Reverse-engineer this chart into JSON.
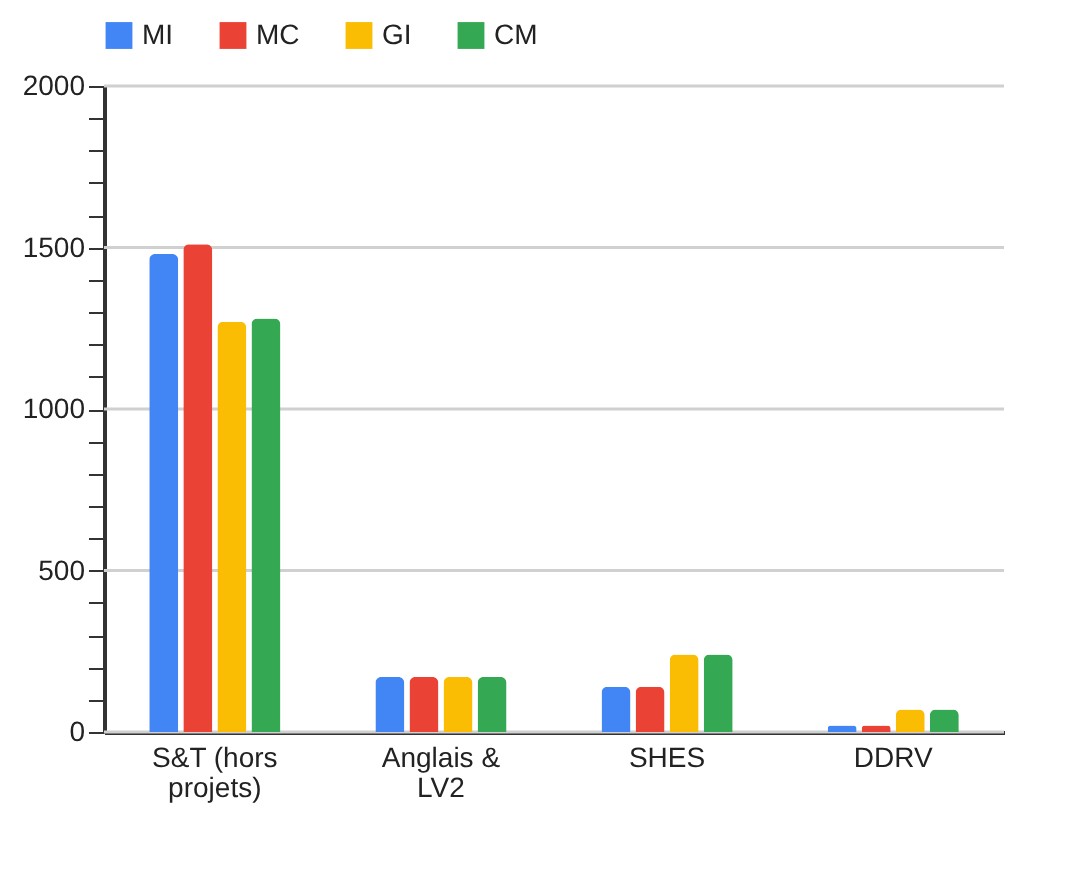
{
  "chart_data": {
    "type": "bar",
    "categories": [
      "S&T (hors projets)",
      "Anglais & LV2",
      "SHES",
      "DDRV"
    ],
    "series": [
      {
        "name": "MI",
        "color": "#4285f4",
        "values": [
          1480,
          170,
          140,
          20
        ]
      },
      {
        "name": "MC",
        "color": "#ea4335",
        "values": [
          1510,
          170,
          140,
          20
        ]
      },
      {
        "name": "GI",
        "color": "#fbbc04",
        "values": [
          1270,
          170,
          240,
          70
        ]
      },
      {
        "name": "CM",
        "color": "#34a853",
        "values": [
          1280,
          170,
          240,
          70
        ]
      }
    ],
    "ylim": [
      0,
      2000
    ],
    "yticks": [
      0,
      {
        "value": 100,
        "label": null
      },
      {
        "value": 200,
        "label": null
      },
      {
        "value": 300,
        "label": null
      },
      {
        "value": 400,
        "label": null
      },
      500,
      {
        "value": 600,
        "label": null
      },
      {
        "value": 700,
        "label": null
      },
      {
        "value": 800,
        "label": null
      },
      {
        "value": 900,
        "label": null
      },
      1000,
      {
        "value": 1100,
        "label": null
      },
      {
        "value": 1200,
        "label": null
      },
      {
        "value": 1300,
        "label": null
      },
      {
        "value": 1400,
        "label": null
      },
      1500,
      {
        "value": 1600,
        "label": null
      },
      {
        "value": 1700,
        "label": null
      },
      {
        "value": 1800,
        "label": null
      },
      {
        "value": 1900,
        "label": null
      },
      2000
    ],
    "grid": "y",
    "legend": "top"
  }
}
